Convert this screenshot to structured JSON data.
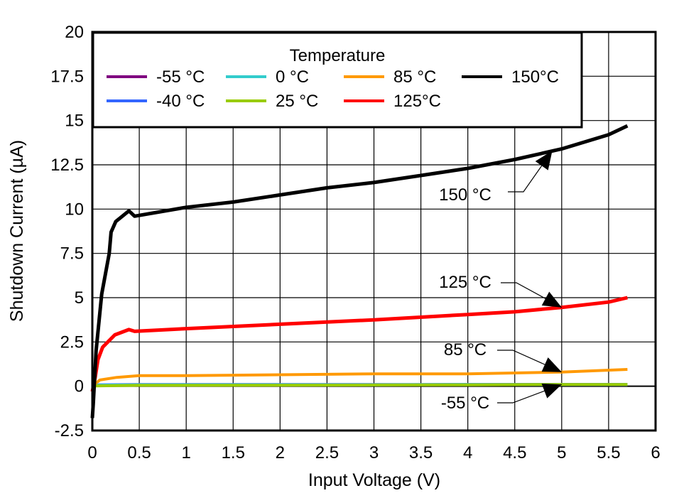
{
  "chart_data": {
    "type": "line",
    "xlabel": "Input Voltage (V)",
    "ylabel": "Shutdown Current (µA)",
    "xlim": [
      0,
      6
    ],
    "ylim": [
      -2.5,
      20
    ],
    "xticks": [
      "0",
      "0.5",
      "1",
      "1.5",
      "2",
      "2.5",
      "3",
      "3.5",
      "4",
      "4.5",
      "5",
      "5.5",
      "6"
    ],
    "yticks": [
      "-2.5",
      "0",
      "2.5",
      "5",
      "7.5",
      "10",
      "12.5",
      "15",
      "17.5",
      "20"
    ],
    "grid": true,
    "legend": {
      "title": "Temperature",
      "placement": "top-left",
      "entries": [
        "-55 °C",
        "0 °C",
        "85 °C",
        "150°C",
        "-40 °C",
        "25 °C",
        "125°C"
      ]
    },
    "series": [
      {
        "name": "-55 °C",
        "color": "#800080",
        "x": [
          0,
          0.02,
          0.5,
          1,
          2,
          3,
          4,
          5,
          5.7
        ],
        "y": [
          0,
          0.05,
          0.08,
          0.08,
          0.08,
          0.08,
          0.1,
          0.1,
          0.1
        ]
      },
      {
        "name": "-40 °C",
        "color": "#3366ff",
        "x": [
          0,
          0.02,
          0.5,
          1,
          2,
          3,
          4,
          5,
          5.7
        ],
        "y": [
          0,
          0.08,
          0.1,
          0.1,
          0.1,
          0.1,
          0.1,
          0.1,
          0.1
        ]
      },
      {
        "name": "0 °C",
        "color": "#33cccc",
        "x": [
          0,
          0.02,
          0.5,
          1,
          2,
          3,
          4,
          5,
          5.7
        ],
        "y": [
          0,
          0.06,
          0.08,
          0.08,
          0.08,
          0.08,
          0.1,
          0.1,
          0.1
        ]
      },
      {
        "name": "25 °C",
        "color": "#99cc00",
        "x": [
          0,
          0.02,
          0.5,
          1,
          2,
          3,
          4,
          5,
          5.7
        ],
        "y": [
          0,
          0.02,
          0.05,
          0.05,
          0.06,
          0.07,
          0.08,
          0.1,
          0.1
        ]
      },
      {
        "name": "85 °C",
        "color": "#ff9900",
        "x": [
          0,
          0.02,
          0.08,
          0.26,
          0.5,
          1,
          2,
          3,
          4,
          5,
          5.7
        ],
        "y": [
          0,
          0.1,
          0.35,
          0.5,
          0.6,
          0.6,
          0.65,
          0.7,
          0.7,
          0.8,
          0.95
        ]
      },
      {
        "name": "125°C",
        "color": "#ff0000",
        "x": [
          0,
          0.03,
          0.06,
          0.11,
          0.24,
          0.39,
          0.45,
          1,
          2,
          3,
          4,
          4.5,
          5,
          5.5,
          5.7
        ],
        "y": [
          -0.3,
          0.5,
          1.5,
          2.2,
          2.9,
          3.2,
          3.1,
          3.25,
          3.5,
          3.75,
          4.05,
          4.2,
          4.45,
          4.75,
          5.0
        ]
      },
      {
        "name": "150°C",
        "color": "#000000",
        "x": [
          0,
          0.01,
          0.04,
          0.1,
          0.18,
          0.2,
          0.25,
          0.32,
          0.39,
          0.45,
          1,
          1.5,
          2,
          2.5,
          3,
          3.5,
          4,
          4.5,
          5,
          5.5,
          5.7
        ],
        "y": [
          -1.8,
          -1.0,
          2.0,
          5.2,
          7.5,
          8.7,
          9.3,
          9.6,
          9.9,
          9.6,
          10.1,
          10.4,
          10.8,
          11.2,
          11.5,
          11.9,
          12.3,
          12.8,
          13.4,
          14.2,
          14.7
        ]
      }
    ],
    "annotations": [
      {
        "text": "150 °C",
        "target": [
          4.9,
          13.3
        ]
      },
      {
        "text": "125 °C",
        "target": [
          5.0,
          4.45
        ]
      },
      {
        "text": "85 °C",
        "target": [
          5.0,
          0.8
        ]
      },
      {
        "text": "-55 °C",
        "target": [
          5.0,
          0.1
        ]
      }
    ]
  }
}
